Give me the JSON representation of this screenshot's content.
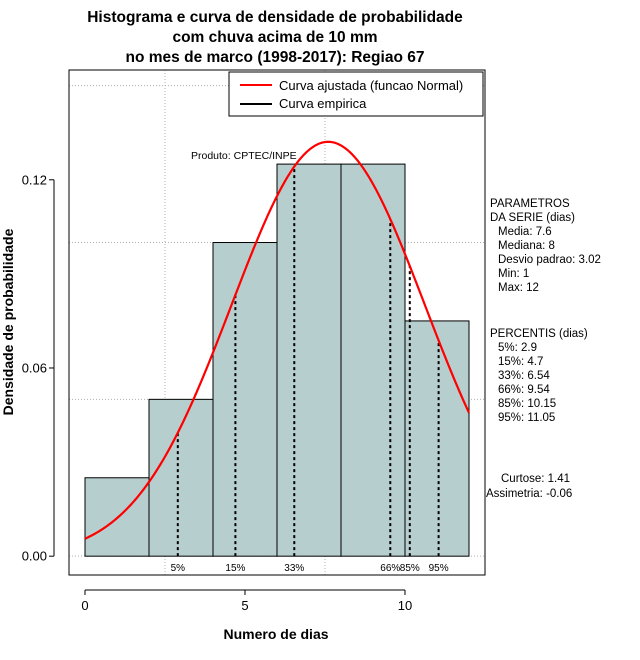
{
  "chart_data": {
    "type": "bar",
    "title": [
      "Histograma e curva de densidade de probabilidade",
      "com chuva acima de 10 mm",
      "no mes de marco (1998-2017): Regiao 67"
    ],
    "xlabel": "Numero de dias",
    "ylabel": "Densidade de probabilidade",
    "xlim": [
      -0.5,
      12.5
    ],
    "ylim": [
      -0.006,
      0.155
    ],
    "x_ticks": [
      0,
      5,
      10
    ],
    "y_ticks": [
      0.0,
      0.06,
      0.12
    ],
    "y_tick_labels": [
      "0.00",
      "0.06",
      "0.12"
    ],
    "bins": [
      {
        "x0": 0,
        "x1": 2,
        "density": 0.025
      },
      {
        "x0": 2,
        "x1": 4,
        "density": 0.05
      },
      {
        "x0": 4,
        "x1": 6,
        "density": 0.1
      },
      {
        "x0": 6,
        "x1": 8,
        "density": 0.125
      },
      {
        "x0": 8,
        "x1": 10,
        "density": 0.125
      },
      {
        "x0": 10,
        "x1": 12,
        "density": 0.075
      }
    ],
    "normal_fit": {
      "mean": 7.6,
      "sd": 3.02,
      "x_range": [
        0,
        12
      ]
    },
    "grid": true,
    "legend": {
      "position": "top-right",
      "entries": [
        {
          "label": "Curva ajustada (funcao Normal)",
          "color": "#ff0000"
        },
        {
          "label": "Curva empirica",
          "color": "#000000"
        }
      ]
    },
    "percentiles": [
      {
        "label": "5%",
        "x": 2.9
      },
      {
        "label": "15%",
        "x": 4.7
      },
      {
        "label": "33%",
        "x": 6.54
      },
      {
        "label": "66%",
        "x": 9.54
      },
      {
        "label": "85%",
        "x": 10.15
      },
      {
        "label": "95%",
        "x": 11.05
      }
    ],
    "annotation": "Produto: CPTEC/INPE",
    "colors": {
      "bar_fill": "#b7cece",
      "curve": "#ff0000",
      "grid": "#b0b0b0"
    }
  },
  "side_panel": {
    "parametros_lines": [
      "PARAMETROS",
      "DA SERIE (dias)",
      "Media: 7.6",
      "Mediana: 8",
      "Desvio padrao: 3.02",
      "Min: 1",
      "Max: 12"
    ],
    "percentis_lines": [
      "PERCENTIS (dias)",
      "5%: 2.9",
      "15%: 4.7",
      "33%: 6.54",
      "66%: 9.54",
      "85%: 10.15",
      "95%: 11.05"
    ],
    "curtose": "Curtose: 1.41",
    "assimetria": "Assimetria: -0.06"
  }
}
